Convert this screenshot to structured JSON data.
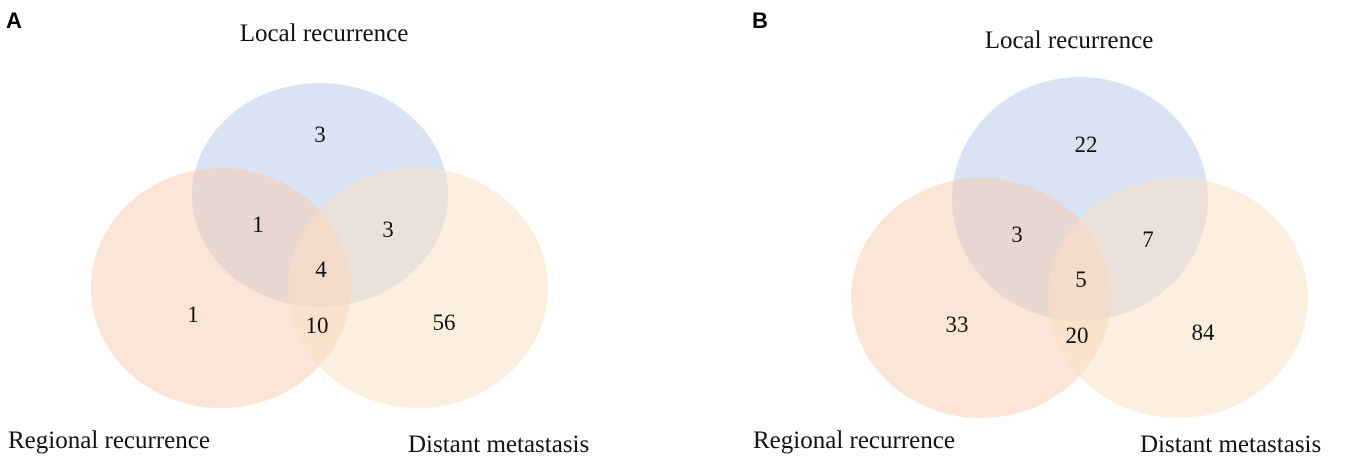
{
  "colors": {
    "local": "#b4c7e7",
    "regional": "#f8cbad",
    "distant": "#fbe0c2",
    "text": "#111111"
  },
  "panels": [
    {
      "letter": "A",
      "labels": {
        "local": "Local recurrence",
        "regional": "Regional recurrence",
        "distant": "Distant metastasis"
      },
      "counts": {
        "local_only": "3",
        "local_regional": "1",
        "local_distant": "3",
        "all_three": "4",
        "regional_only": "1",
        "regional_distant": "10",
        "distant_only": "56"
      }
    },
    {
      "letter": "B",
      "labels": {
        "local": "Local recurrence",
        "regional": "Regional recurrence",
        "distant": "Distant metastasis"
      },
      "counts": {
        "local_only": "22",
        "local_regional": "3",
        "local_distant": "7",
        "all_three": "5",
        "regional_only": "33",
        "regional_distant": "20",
        "distant_only": "84"
      }
    }
  ]
}
